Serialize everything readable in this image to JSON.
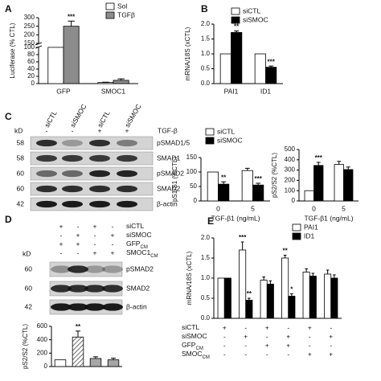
{
  "chart_data": [
    {
      "type": "bar",
      "panel": "A",
      "ylabel": "Luciferase (% CTL)",
      "categories": [
        "GFP",
        "SMOC1"
      ],
      "series": [
        {
          "name": "Sol",
          "color": "#ffffff",
          "values": [
            100,
            3
          ],
          "errors": [
            null,
            1
          ]
        },
        {
          "name": "TGFβ",
          "color": "#8c8c8c",
          "values": [
            250,
            9
          ],
          "errors": [
            30,
            4
          ],
          "stars": [
            "***",
            null
          ]
        }
      ],
      "ylim": [
        0,
        300
      ],
      "ybreak": [
        100,
        150
      ],
      "yticks": [
        0,
        20,
        40,
        60,
        80,
        100,
        150,
        200,
        250,
        300
      ]
    },
    {
      "type": "bar",
      "panel": "B",
      "ylabel": "mRNA/18S (xCTL)",
      "categories": [
        "PAI1",
        "ID1"
      ],
      "series": [
        {
          "name": "siCTL",
          "color": "#ffffff",
          "values": [
            1,
            1
          ]
        },
        {
          "name": "siSMOC",
          "color": "#000000",
          "values": [
            1.72,
            0.55
          ],
          "errors": [
            0.05,
            0.04
          ],
          "stars": [
            "**",
            "***"
          ]
        }
      ],
      "ylim": [
        0,
        2
      ],
      "yticks": [
        {
          "value": 0,
          "label": "0.0"
        },
        0.5,
        {
          "value": 1,
          "label": "1.0"
        },
        1.5,
        {
          "value": 2,
          "label": "2.0"
        }
      ]
    },
    {
      "type": "bar",
      "ylabel": "pS1/S1 (%CTL)",
      "xlabel": "TGF-β1 (ng/mL)",
      "categories": [
        "0",
        "5"
      ],
      "series": [
        {
          "name": "siCTL",
          "color": "#ffffff",
          "values": [
            100,
            105
          ],
          "errors": [
            null,
            8
          ]
        },
        {
          "name": "siSMOC",
          "color": "#000000",
          "values": [
            58,
            55
          ],
          "errors": [
            8,
            6
          ],
          "stars": [
            "**",
            "***"
          ]
        }
      ],
      "ylim": [
        0,
        150
      ],
      "yticks": [
        0,
        50,
        100,
        150
      ]
    },
    {
      "type": "bar",
      "ylabel": "pS2/S2 (%CTL)",
      "xlabel": "TGF-β1 (ng/mL)",
      "categories": [
        "0",
        "5"
      ],
      "series": [
        {
          "color": "#ffffff",
          "values": [
            100,
            355
          ],
          "errors": [
            null,
            30
          ]
        },
        {
          "color": "#000000",
          "values": [
            345,
            305
          ],
          "errors": [
            30,
            25
          ],
          "stars": [
            "***",
            null
          ]
        }
      ],
      "ylim": [
        0,
        500
      ],
      "yticks": [
        0,
        100,
        200,
        300,
        400,
        500
      ]
    },
    {
      "type": "bar",
      "ylabel": "pS2/S2 (%CTL)",
      "categories": [
        null,
        null,
        null,
        null
      ],
      "series": [
        {
          "colors": [
            "#ffffff",
            "#ffffff",
            "#a6a6a6",
            "#a6a6a6"
          ],
          "hatched": [
            false,
            true,
            false,
            false
          ],
          "values": [
            100,
            440,
            120,
            100
          ],
          "errors": [
            null,
            90,
            25,
            25
          ],
          "stars": [
            null,
            "**",
            null,
            null
          ]
        }
      ],
      "ylim": [
        0,
        600
      ],
      "yticks": [
        0,
        200,
        400,
        600
      ]
    },
    {
      "type": "bar",
      "panel": "E",
      "ylabel": "mRNA/18S (xCTL)",
      "categories": [
        null,
        null,
        null,
        null,
        null,
        null
      ],
      "series": [
        {
          "name": "PAI1",
          "color": "#ffffff",
          "values": [
            1,
            1.7,
            0.95,
            1.5,
            1.15,
            1.1
          ],
          "errors": [
            null,
            0.2,
            0.08,
            0.07,
            0.08,
            0.1
          ],
          "stars": [
            null,
            "***",
            null,
            "**",
            null,
            null
          ]
        },
        {
          "name": "ID1",
          "color": "#000000",
          "values": [
            1,
            0.45,
            0.85,
            0.55,
            1.05,
            1.0
          ],
          "errors": [
            null,
            0.05,
            0.08,
            0.06,
            0.07,
            0.08
          ],
          "stars": [
            null,
            "**",
            null,
            "*",
            null,
            null
          ]
        }
      ],
      "ylim": [
        0,
        2
      ],
      "yticks": [
        {
          "value": 0,
          "label": "0.0"
        },
        0.5,
        {
          "value": 1,
          "label": "1.0"
        },
        1.5,
        {
          "value": 2,
          "label": "2.0"
        }
      ],
      "conditions": [
        {
          "label": [
            "siCTL"
          ],
          "signs": [
            "+",
            "-",
            "+",
            "-",
            "+",
            "-"
          ]
        },
        {
          "label": [
            "siSMOC"
          ],
          "signs": [
            "-",
            "+",
            "-",
            "+",
            "-",
            "+"
          ]
        },
        {
          "label": [
            "GFP",
            "CM"
          ],
          "signs": [
            "-",
            "-",
            "+",
            "+",
            "-",
            "-"
          ]
        },
        {
          "label": [
            "SMOC",
            "CM"
          ],
          "signs": [
            "-",
            "-",
            "-",
            "-",
            "+",
            "+"
          ]
        }
      ]
    }
  ],
  "blots": [
    {
      "panel": "C",
      "lanes": [
        "siCTL",
        "siSMOC",
        "siCTL",
        "siSMOC"
      ],
      "treatment": {
        "label": "TGF-β",
        "signs": [
          "-",
          "-",
          "+",
          "+"
        ]
      },
      "unit": "kD",
      "bands": [
        {
          "kd": 58,
          "label": "pSMAD1/5"
        },
        {
          "kd": 58,
          "label": "SMAD1"
        },
        {
          "kd": 60,
          "label": "pSMAD2"
        },
        {
          "kd": 60,
          "label": "SMAD2"
        },
        {
          "kd": 42,
          "label": "β-actin"
        }
      ]
    },
    {
      "panel": "D",
      "unit": "kD",
      "conditions": [
        {
          "label": [
            "siCTL"
          ],
          "signs": [
            "+",
            "-",
            "+",
            "-"
          ]
        },
        {
          "label": [
            "siSMOC"
          ],
          "signs": [
            "-",
            "+",
            "-",
            "+"
          ]
        },
        {
          "label": [
            "GFP",
            "CM"
          ],
          "signs": [
            "+",
            "+",
            "-",
            "-"
          ]
        },
        {
          "label": [
            "SMOC1",
            "CM"
          ],
          "signs": [
            "-",
            "-",
            "+",
            "+"
          ]
        }
      ],
      "bands": [
        {
          "kd": 60,
          "label": "pSMAD2"
        },
        {
          "kd": 60,
          "label": "SMAD2"
        },
        {
          "kd": 42,
          "label": "β-actin"
        }
      ]
    }
  ]
}
